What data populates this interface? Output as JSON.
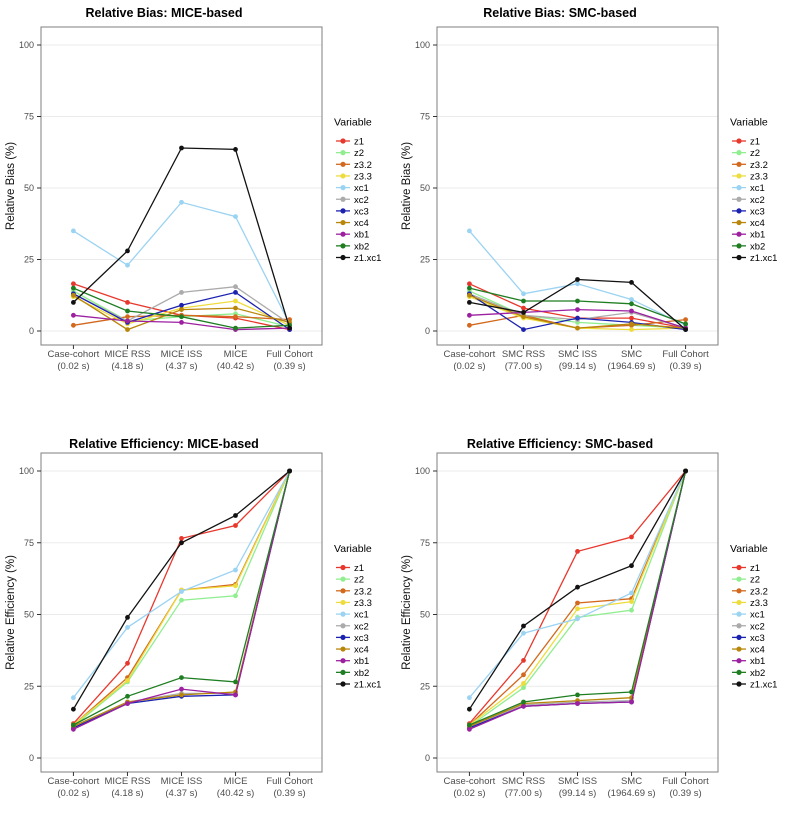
{
  "figure": {
    "legend_title": "Variable",
    "series_names": [
      "z1",
      "z2",
      "z3.2",
      "z3.3",
      "xc1",
      "xc2",
      "xc3",
      "xc4",
      "xb1",
      "xb2",
      "z1.xc1"
    ],
    "palette": {
      "z1": "#E8382D",
      "z2": "#90EE90",
      "z3.2": "#D2691E",
      "z3.3": "#EEDC3E",
      "xc1": "#9BD3F2",
      "xc2": "#ABABAB",
      "xc3": "#1C22B0",
      "xc4": "#B8860B",
      "xb1": "#9C20A0",
      "xb2": "#1F7E22",
      "z1.xc1": "#111111"
    },
    "axis_colors": {
      "tick_text": "#4D4D4D",
      "panel_border": "#7F7F7F",
      "gridline": "#EBEBEB",
      "title": "#000000",
      "axis_title": "#111111"
    }
  },
  "chart_data": [
    {
      "id": "relative-bias-mice",
      "type": "line",
      "title": "Relative Bias: MICE-based",
      "xlabel": "",
      "ylabel": "Relative Bias (%)",
      "ylim": [
        -4,
        104
      ],
      "yticks": [
        0,
        25,
        50,
        75,
        100
      ],
      "grid": "major-y",
      "legend_title": "Variable",
      "legend_position": "right",
      "categories": [
        "Case-cohort",
        "MICE RSS",
        "MICE ISS",
        "MICE",
        "Full Cohort"
      ],
      "category_sublabels": [
        "(0.02 s)",
        "(4.18 s)",
        "(4.37 s)",
        "(40.42 s)",
        "(0.39 s)"
      ],
      "series": [
        {
          "name": "z1",
          "color": "#E8382D",
          "values": [
            16.5,
            10,
            5.5,
            4.5,
            0.5
          ]
        },
        {
          "name": "z2",
          "color": "#90EE90",
          "values": [
            14,
            3.5,
            5,
            6,
            1.5
          ]
        },
        {
          "name": "z3.2",
          "color": "#D2691E",
          "values": [
            2,
            5,
            5.5,
            5,
            4
          ]
        },
        {
          "name": "z3.3",
          "color": "#EEDC3E",
          "values": [
            12,
            2.5,
            8,
            10.5,
            2
          ]
        },
        {
          "name": "xc1",
          "color": "#9BD3F2",
          "values": [
            35,
            23,
            45,
            40,
            2.5
          ]
        },
        {
          "name": "xc2",
          "color": "#ABABAB",
          "values": [
            13,
            3.5,
            13.5,
            15.5,
            2.5
          ]
        },
        {
          "name": "xc3",
          "color": "#1C22B0",
          "values": [
            13,
            3,
            9,
            13.5,
            0.5
          ]
        },
        {
          "name": "xc4",
          "color": "#B8860B",
          "values": [
            12.5,
            0.5,
            7.5,
            8,
            3
          ]
        },
        {
          "name": "xb1",
          "color": "#9C20A0",
          "values": [
            5.5,
            3.5,
            3,
            0.5,
            1
          ]
        },
        {
          "name": "xb2",
          "color": "#1F7E22",
          "values": [
            15,
            7,
            5,
            1,
            2
          ]
        },
        {
          "name": "z1.xc1",
          "color": "#111111",
          "values": [
            10,
            28,
            64,
            63.5,
            1
          ]
        }
      ]
    },
    {
      "id": "relative-bias-smc",
      "type": "line",
      "title": "Relative Bias: SMC-based",
      "xlabel": "",
      "ylabel": "Relative Bias (%)",
      "ylim": [
        -4,
        104
      ],
      "yticks": [
        0,
        25,
        50,
        75,
        100
      ],
      "grid": "major-y",
      "legend_title": "Variable",
      "legend_position": "right",
      "categories": [
        "Case-cohort",
        "SMC RSS",
        "SMC ISS",
        "SMC",
        "Full Cohort"
      ],
      "category_sublabels": [
        "(0.02 s)",
        "(77.00 s)",
        "(99.14 s)",
        "(1964.69 s)",
        "(0.39 s)"
      ],
      "series": [
        {
          "name": "z1",
          "color": "#E8382D",
          "values": [
            16.5,
            8,
            4.5,
            4.5,
            1
          ]
        },
        {
          "name": "z2",
          "color": "#90EE90",
          "values": [
            14,
            5.5,
            3,
            2,
            1
          ]
        },
        {
          "name": "z3.2",
          "color": "#D2691E",
          "values": [
            2,
            5.5,
            1,
            2,
            4
          ]
        },
        {
          "name": "z3.3",
          "color": "#EEDC3E",
          "values": [
            12,
            4.5,
            1,
            0.5,
            1
          ]
        },
        {
          "name": "xc1",
          "color": "#9BD3F2",
          "values": [
            35,
            13,
            16.5,
            11,
            2
          ]
        },
        {
          "name": "xc2",
          "color": "#ABABAB",
          "values": [
            13,
            5.5,
            4,
            6.5,
            1
          ]
        },
        {
          "name": "xc3",
          "color": "#1C22B0",
          "values": [
            13,
            0.5,
            4.5,
            3,
            0.5
          ]
        },
        {
          "name": "xc4",
          "color": "#B8860B",
          "values": [
            12.5,
            5,
            1,
            2.5,
            1
          ]
        },
        {
          "name": "xb1",
          "color": "#9C20A0",
          "values": [
            5.5,
            6.5,
            7.5,
            7,
            1
          ]
        },
        {
          "name": "xb2",
          "color": "#1F7E22",
          "values": [
            15,
            10.5,
            10.5,
            9.5,
            2.5
          ]
        },
        {
          "name": "z1.xc1",
          "color": "#111111",
          "values": [
            10,
            6.5,
            18,
            17,
            0.5
          ]
        }
      ]
    },
    {
      "id": "relative-efficiency-mice",
      "type": "line",
      "title": "Relative Efficiency: MICE-based",
      "xlabel": "",
      "ylabel": "Relative Efficiency (%)",
      "ylim": [
        -4,
        104
      ],
      "yticks": [
        0,
        25,
        50,
        75,
        100
      ],
      "grid": "major-y",
      "legend_title": "Variable",
      "legend_position": "right",
      "categories": [
        "Case-cohort",
        "MICE RSS",
        "MICE ISS",
        "MICE",
        "Full Cohort"
      ],
      "category_sublabels": [
        "(0.02 s)",
        "(4.18 s)",
        "(4.37 s)",
        "(40.42 s)",
        "(0.39 s)"
      ],
      "series": [
        {
          "name": "z1",
          "color": "#E8382D",
          "values": [
            12,
            33,
            76.5,
            81,
            100
          ]
        },
        {
          "name": "z2",
          "color": "#90EE90",
          "values": [
            11,
            26.5,
            55,
            56.5,
            100
          ]
        },
        {
          "name": "z3.2",
          "color": "#D2691E",
          "values": [
            11.5,
            28,
            58.5,
            60.5,
            100
          ]
        },
        {
          "name": "z3.3",
          "color": "#EEDC3E",
          "values": [
            11.5,
            27,
            58.5,
            60,
            100
          ]
        },
        {
          "name": "xc1",
          "color": "#9BD3F2",
          "values": [
            21,
            45.5,
            58,
            65.5,
            100
          ]
        },
        {
          "name": "xc2",
          "color": "#ABABAB",
          "values": [
            11,
            19.5,
            22.5,
            22.5,
            100
          ]
        },
        {
          "name": "xc3",
          "color": "#1C22B0",
          "values": [
            10.5,
            19,
            21.5,
            22,
            100
          ]
        },
        {
          "name": "xc4",
          "color": "#B8860B",
          "values": [
            11,
            19.5,
            22,
            23,
            100
          ]
        },
        {
          "name": "xb1",
          "color": "#9C20A0",
          "values": [
            10,
            19,
            24,
            22,
            100
          ]
        },
        {
          "name": "xb2",
          "color": "#1F7E22",
          "values": [
            11.5,
            21.5,
            28,
            26.5,
            100
          ]
        },
        {
          "name": "z1.xc1",
          "color": "#111111",
          "values": [
            17,
            49,
            75,
            84.5,
            100
          ]
        }
      ]
    },
    {
      "id": "relative-efficiency-smc",
      "type": "line",
      "title": "Relative Efficiency: SMC-based",
      "xlabel": "",
      "ylabel": "Relative Efficiency (%)",
      "ylim": [
        -4,
        104
      ],
      "yticks": [
        0,
        25,
        50,
        75,
        100
      ],
      "grid": "major-y",
      "legend_title": "Variable",
      "legend_position": "right",
      "categories": [
        "Case-cohort",
        "SMC RSS",
        "SMC ISS",
        "SMC",
        "Full Cohort"
      ],
      "category_sublabels": [
        "(0.02 s)",
        "(77.00 s)",
        "(99.14 s)",
        "(1964.69 s)",
        "(0.39 s)"
      ],
      "series": [
        {
          "name": "z1",
          "color": "#E8382D",
          "values": [
            12,
            34,
            72,
            77,
            100
          ]
        },
        {
          "name": "z2",
          "color": "#90EE90",
          "values": [
            11,
            24.5,
            49,
            51.5,
            100
          ]
        },
        {
          "name": "z3.2",
          "color": "#D2691E",
          "values": [
            11.5,
            29,
            54,
            55.5,
            100
          ]
        },
        {
          "name": "z3.3",
          "color": "#EEDC3E",
          "values": [
            11.5,
            26,
            52,
            54.5,
            100
          ]
        },
        {
          "name": "xc1",
          "color": "#9BD3F2",
          "values": [
            21,
            43.5,
            48.5,
            57.5,
            100
          ]
        },
        {
          "name": "xc2",
          "color": "#ABABAB",
          "values": [
            11,
            18.5,
            19.5,
            20,
            100
          ]
        },
        {
          "name": "xc3",
          "color": "#1C22B0",
          "values": [
            10.5,
            18,
            19,
            19.5,
            100
          ]
        },
        {
          "name": "xc4",
          "color": "#B8860B",
          "values": [
            11,
            19,
            20,
            21,
            100
          ]
        },
        {
          "name": "xb1",
          "color": "#9C20A0",
          "values": [
            10,
            18,
            19,
            19.5,
            100
          ]
        },
        {
          "name": "xb2",
          "color": "#1F7E22",
          "values": [
            11.5,
            19.5,
            22,
            23,
            100
          ]
        },
        {
          "name": "z1.xc1",
          "color": "#111111",
          "values": [
            17,
            46,
            59.5,
            67,
            100
          ]
        }
      ]
    }
  ]
}
